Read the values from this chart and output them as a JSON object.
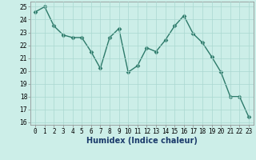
{
  "title": "",
  "xlabel": "Humidex (Indice chaleur)",
  "x": [
    0,
    1,
    2,
    3,
    4,
    5,
    6,
    7,
    8,
    9,
    10,
    11,
    12,
    13,
    14,
    15,
    16,
    17,
    18,
    19,
    20,
    21,
    22,
    23
  ],
  "y": [
    24.6,
    25.0,
    23.5,
    22.8,
    22.6,
    22.6,
    21.5,
    20.2,
    22.6,
    23.3,
    19.9,
    20.4,
    21.8,
    21.5,
    22.4,
    23.5,
    24.3,
    22.9,
    22.2,
    21.1,
    19.9,
    18.0,
    18.0,
    16.4
  ],
  "ylim": [
    15.8,
    25.4
  ],
  "yticks": [
    16,
    17,
    18,
    19,
    20,
    21,
    22,
    23,
    24,
    25
  ],
  "xlim": [
    -0.5,
    23.5
  ],
  "line_color": "#2d7a6a",
  "marker": "D",
  "markersize": 2.5,
  "bg_color": "#cceee8",
  "grid_color": "#aad8d0",
  "xlabel_fontsize": 7,
  "tick_fontsize": 5.5,
  "xlabel_color": "#1a3a6a",
  "line_width": 1.0
}
